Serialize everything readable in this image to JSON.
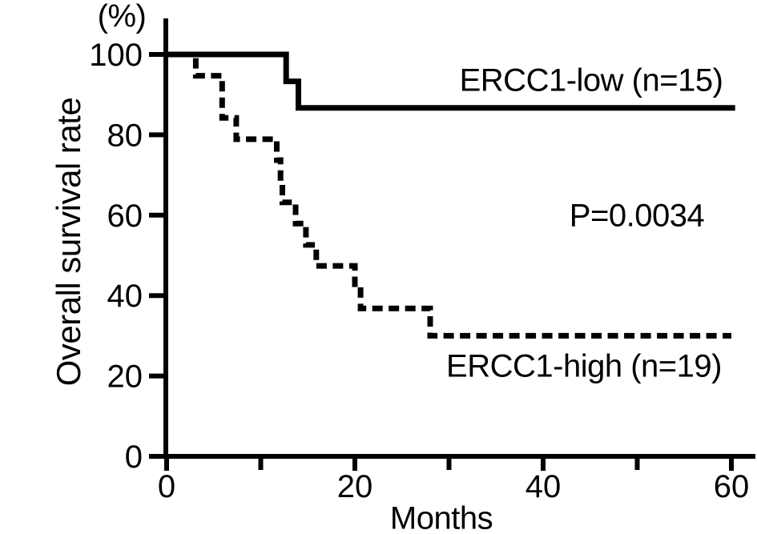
{
  "figure": {
    "y_unit_label": "(%)",
    "ylabel": "Overall survival rate",
    "xlabel": "Months",
    "series_label_low": "ERCC1-low (n=15)",
    "series_label_high": "ERCC1-high (n=19)",
    "p_value_label": "P=0.0034"
  },
  "chart_data": {
    "type": "line",
    "subtype": "kaplan-meier-step",
    "title": "",
    "xlabel": "Months",
    "ylabel": "Overall survival rate",
    "y_unit": "(%)",
    "xlim": [
      0,
      60
    ],
    "ylim": [
      0,
      100
    ],
    "x_major_ticks": [
      0,
      20,
      40,
      60
    ],
    "x_minor_ticks": [
      10,
      30,
      50
    ],
    "y_ticks": [
      0,
      20,
      40,
      60,
      80,
      100
    ],
    "grid": false,
    "legend_position": "inline-annotations",
    "p_value": "P=0.0034",
    "annotations": [
      {
        "text": "ERCC1-low (n=15)",
        "x_month": 45,
        "y_percent": 93.5
      },
      {
        "text": "P=0.0034",
        "x_month": 50,
        "y_percent": 59.5
      },
      {
        "text": "ERCC1-high (n=19)",
        "x_month": 44.5,
        "y_percent": 22.3
      }
    ],
    "series": [
      {
        "name": "ERCC1-high (n=19)",
        "n": 19,
        "line_style": "dashed",
        "color": "#000000",
        "points": [
          [
            0,
            100
          ],
          [
            3.1,
            100
          ],
          [
            3.1,
            94.7
          ],
          [
            5.9,
            94.7
          ],
          [
            5.9,
            84.2
          ],
          [
            7.4,
            84.2
          ],
          [
            7.4,
            78.9
          ],
          [
            11.7,
            78.9
          ],
          [
            11.7,
            73.7
          ],
          [
            12.1,
            73.7
          ],
          [
            12.1,
            68.4
          ],
          [
            12.3,
            68.4
          ],
          [
            12.3,
            63.2
          ],
          [
            13.7,
            63.2
          ],
          [
            13.7,
            57.9
          ],
          [
            14.8,
            57.9
          ],
          [
            14.8,
            52.6
          ],
          [
            15.9,
            52.6
          ],
          [
            15.9,
            47.4
          ],
          [
            20,
            47.4
          ],
          [
            20,
            42.1
          ],
          [
            20.6,
            42.1
          ],
          [
            20.6,
            36.8
          ],
          [
            28,
            36.8
          ],
          [
            28,
            30
          ],
          [
            60,
            30
          ]
        ]
      },
      {
        "name": "ERCC1-low (n=15)",
        "n": 15,
        "line_style": "solid",
        "color": "#000000",
        "points": [
          [
            0,
            100
          ],
          [
            12.7,
            100
          ],
          [
            12.7,
            93.3
          ],
          [
            14,
            93.3
          ],
          [
            14,
            86.7
          ],
          [
            60.4,
            86.7
          ]
        ]
      }
    ]
  }
}
